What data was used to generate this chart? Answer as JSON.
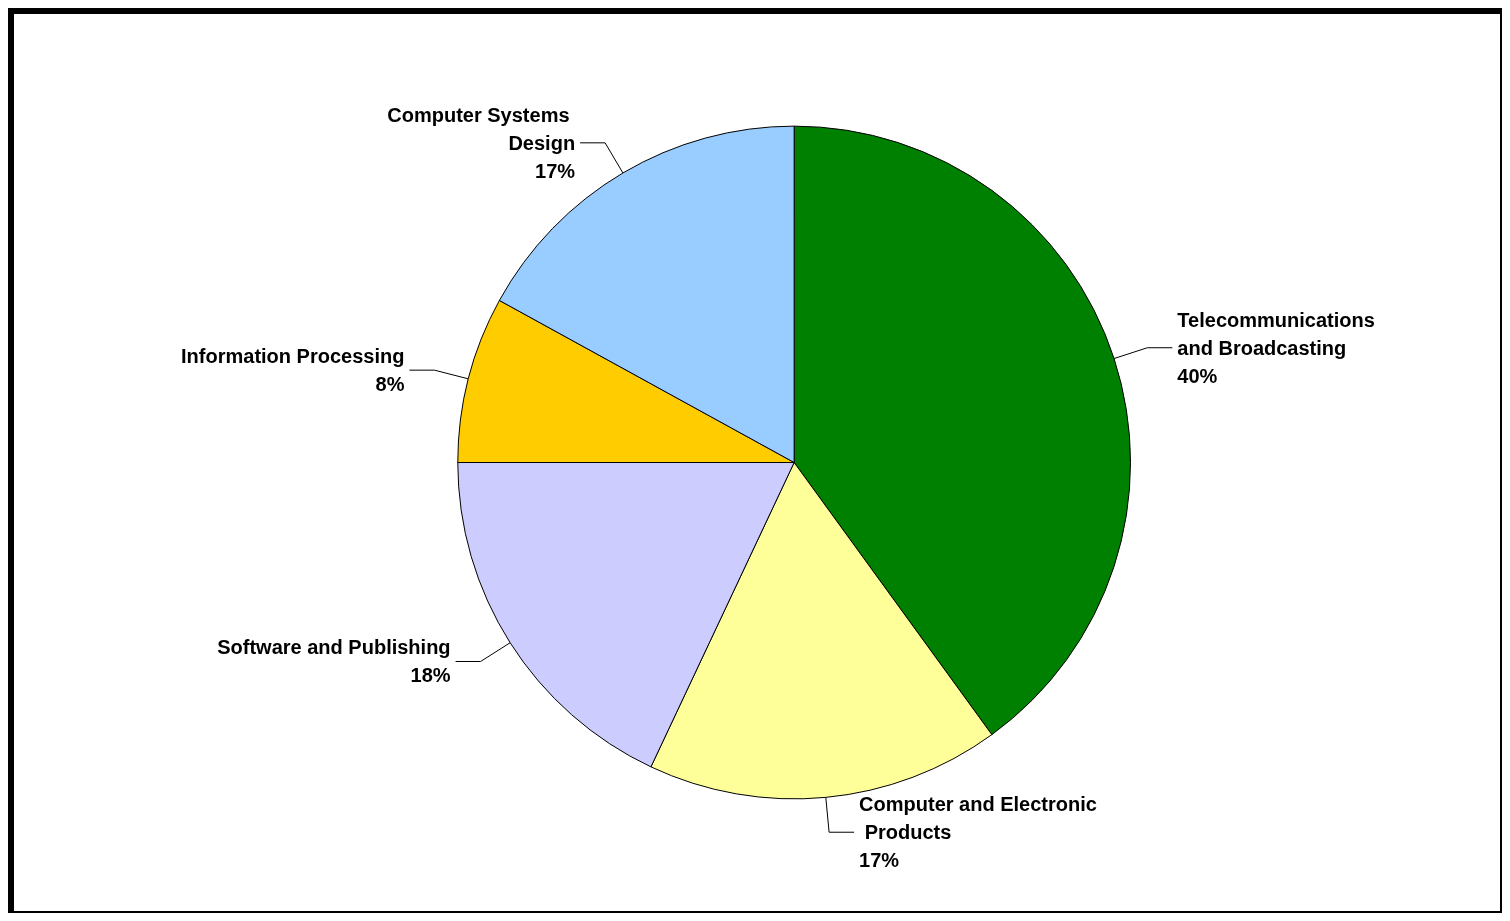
{
  "chart_data": {
    "type": "pie",
    "categories": [
      "Telecommunications and Broadcasting",
      "Computer and Electronic Products",
      "Software and Publishing",
      "Information Processing",
      "Computer Systems Design"
    ],
    "values": [
      40,
      17,
      18,
      8,
      17
    ],
    "colors": [
      "#008000",
      "#ffff99",
      "#ccccff",
      "#ffcc00",
      "#99ccff"
    ],
    "value_labels": [
      "40%",
      "17%",
      "18%",
      "8%",
      "17%"
    ],
    "legend": false
  }
}
